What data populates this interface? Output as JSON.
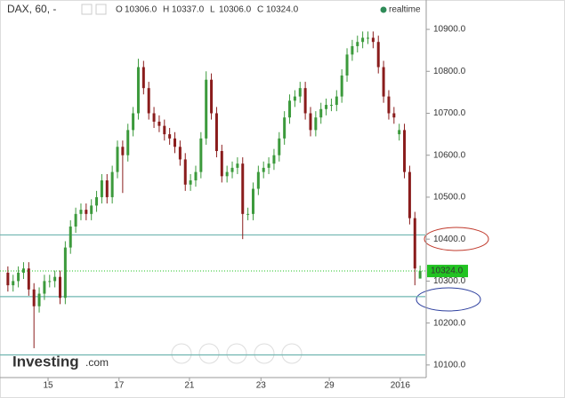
{
  "chart_data": {
    "type": "candlestick",
    "title": "DAX, 60, -",
    "ohlc_labels": [
      "O",
      "H",
      "L",
      "C"
    ],
    "ohlc_values": [
      "10306.0",
      "10337.0",
      "10306.0",
      "10324.0"
    ],
    "status": "realtime",
    "watermark": [
      "Investing",
      ".com"
    ],
    "up_color": "#3c9a3c",
    "down_color": "#8a1c1c",
    "x": [
      0,
      1,
      2,
      3,
      4,
      5,
      6,
      7,
      8,
      9,
      10,
      11,
      12,
      13,
      14,
      15,
      16,
      17,
      18,
      19,
      20,
      21,
      22,
      23,
      24,
      25,
      26,
      27,
      28,
      29,
      30,
      31,
      32,
      33,
      34,
      35,
      36,
      37,
      38,
      39,
      40,
      41,
      42,
      43,
      44,
      45,
      46,
      47,
      48,
      49,
      50,
      51,
      52,
      53,
      54,
      55,
      56,
      57,
      58,
      59,
      60,
      61,
      62,
      63,
      64,
      65,
      66,
      67,
      68,
      69,
      70,
      71,
      72,
      73,
      74,
      75,
      76,
      77,
      78,
      79
    ],
    "open": [
      10320,
      10290,
      10300,
      10320,
      10330,
      10280,
      10240,
      10270,
      10300,
      10300,
      10310,
      10260,
      10380,
      10430,
      10460,
      10470,
      10460,
      10480,
      10500,
      10540,
      10500,
      10560,
      10620,
      10600,
      10660,
      10700,
      10810,
      10760,
      10700,
      10680,
      10670,
      10650,
      10640,
      10620,
      10590,
      10530,
      10540,
      10560,
      10640,
      10780,
      10700,
      10610,
      10550,
      10560,
      10570,
      10580,
      10460,
      10460,
      10520,
      10560,
      10570,
      10580,
      10600,
      10640,
      10690,
      10730,
      10740,
      10760,
      10700,
      10660,
      10690,
      10710,
      10720,
      10720,
      10740,
      10790,
      10840,
      10860,
      10870,
      10880,
      10880,
      10870,
      10810,
      10740,
      10700,
      10650,
      10660,
      10560,
      10450,
      10306
    ],
    "high": [
      10335,
      10315,
      10335,
      10345,
      10345,
      10295,
      10285,
      10315,
      10315,
      10325,
      10325,
      10395,
      10445,
      10475,
      10485,
      10485,
      10495,
      10515,
      10555,
      10555,
      10575,
      10635,
      10635,
      10675,
      10715,
      10830,
      10825,
      10775,
      10715,
      10695,
      10685,
      10665,
      10655,
      10635,
      10605,
      10555,
      10575,
      10655,
      10800,
      10795,
      10715,
      10625,
      10575,
      10585,
      10595,
      10595,
      10475,
      10535,
      10575,
      10585,
      10595,
      10615,
      10655,
      10705,
      10745,
      10755,
      10775,
      10775,
      10715,
      10705,
      10725,
      10735,
      10735,
      10755,
      10805,
      10855,
      10875,
      10885,
      10895,
      10895,
      10895,
      10885,
      10825,
      10755,
      10715,
      10675,
      10675,
      10575,
      10465,
      10337
    ],
    "low": [
      10275,
      10275,
      10285,
      10305,
      10265,
      10140,
      10225,
      10255,
      10285,
      10285,
      10245,
      10245,
      10365,
      10415,
      10445,
      10445,
      10445,
      10465,
      10485,
      10485,
      10485,
      10545,
      10510,
      10585,
      10645,
      10685,
      10745,
      10685,
      10665,
      10655,
      10635,
      10625,
      10605,
      10575,
      10515,
      10515,
      10525,
      10545,
      10625,
      10685,
      10595,
      10535,
      10535,
      10545,
      10555,
      10400,
      10445,
      10445,
      10505,
      10545,
      10555,
      10565,
      10585,
      10625,
      10675,
      10715,
      10725,
      10685,
      10645,
      10645,
      10675,
      10695,
      10705,
      10705,
      10725,
      10775,
      10825,
      10845,
      10855,
      10865,
      10855,
      10795,
      10725,
      10685,
      10675,
      10635,
      10545,
      10435,
      10290,
      10306
    ],
    "close": [
      10290,
      10300,
      10320,
      10330,
      10280,
      10240,
      10270,
      10300,
      10300,
      10310,
      10260,
      10380,
      10430,
      10460,
      10470,
      10460,
      10480,
      10500,
      10540,
      10500,
      10560,
      10620,
      10600,
      10660,
      10700,
      10810,
      10760,
      10700,
      10680,
      10670,
      10650,
      10640,
      10620,
      10590,
      10530,
      10540,
      10560,
      10640,
      10780,
      10700,
      10610,
      10550,
      10560,
      10570,
      10580,
      10460,
      10460,
      10520,
      10560,
      10570,
      10580,
      10600,
      10640,
      10690,
      10730,
      10740,
      10760,
      10700,
      10660,
      10690,
      10710,
      10720,
      10720,
      10740,
      10790,
      10840,
      10860,
      10870,
      10880,
      10880,
      10870,
      10810,
      10740,
      10700,
      10690,
      10660,
      10560,
      10450,
      10330,
      10324
    ],
    "xlim": [
      -1,
      80
    ],
    "xticks": [
      {
        "value": 7.7,
        "label": "15"
      },
      {
        "value": 21.3,
        "label": "17"
      },
      {
        "value": 34.8,
        "label": "21"
      },
      {
        "value": 48.5,
        "label": "23"
      },
      {
        "value": 61.6,
        "label": "29"
      },
      {
        "value": 75.2,
        "label": "2016"
      }
    ],
    "ylim": [
      10070,
      10970
    ],
    "yticks": [
      {
        "value": 10100,
        "label": "10100.0"
      },
      {
        "value": 10200,
        "label": "10200.0"
      },
      {
        "value": 10300,
        "label": "10300.0"
      },
      {
        "value": 10400,
        "label": "10400.0"
      },
      {
        "value": 10500,
        "label": "10500.0"
      },
      {
        "value": 10600,
        "label": "10600.0"
      },
      {
        "value": 10700,
        "label": "10700.0"
      },
      {
        "value": 10800,
        "label": "10800.0"
      },
      {
        "value": 10900,
        "label": "10900.0"
      }
    ],
    "hlines": [
      10410,
      10263,
      10124
    ],
    "hline_color": "#6fb5b0",
    "last_price": {
      "value": 10324,
      "label": "10324.0"
    },
    "last_price_color": "#22c322"
  }
}
